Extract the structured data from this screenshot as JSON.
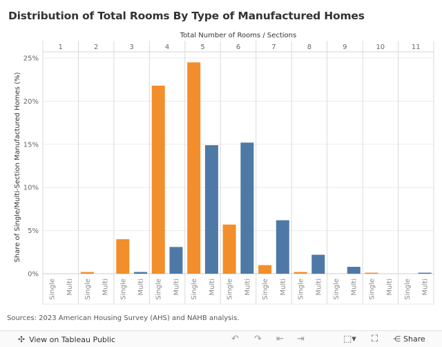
{
  "title": "Distribution of Total Rooms By Type of Manufactured Homes",
  "source": "Sources: 2023 American Housing Survey (AHS) and NAHB analysis.",
  "toolbar": {
    "view_label": "View on Tableau Public",
    "share_label": "Share",
    "icons": [
      "tableau-logo-icon",
      "undo-icon",
      "redo-icon",
      "revert-icon",
      "forward-icon",
      "download-icon",
      "fullscreen-icon",
      "share-icon"
    ]
  },
  "colors": {
    "single": "#f28e2b",
    "multi": "#4e79a7"
  },
  "chart_data": {
    "type": "bar",
    "column_header": "Total Number of Rooms  /  Sections",
    "groups": [
      "1",
      "2",
      "3",
      "4",
      "5",
      "6",
      "7",
      "8",
      "9",
      "10",
      "11"
    ],
    "subcategories": [
      "Single",
      "Multi"
    ],
    "series": [
      {
        "name": "Single",
        "values": [
          0,
          0.2,
          4.0,
          21.8,
          24.5,
          5.7,
          1.0,
          0.2,
          0,
          0.1,
          0
        ]
      },
      {
        "name": "Multi",
        "values": [
          0,
          0,
          0.2,
          3.1,
          14.9,
          15.2,
          6.2,
          2.2,
          0.8,
          0,
          0.1
        ]
      }
    ],
    "ylabel": "Share of Single/Multi-Section Manufactured Homes (%)",
    "yticks": [
      "0%",
      "5%",
      "10%",
      "15%",
      "20%",
      "25%"
    ],
    "ylim": [
      0,
      25
    ],
    "grid": true
  }
}
